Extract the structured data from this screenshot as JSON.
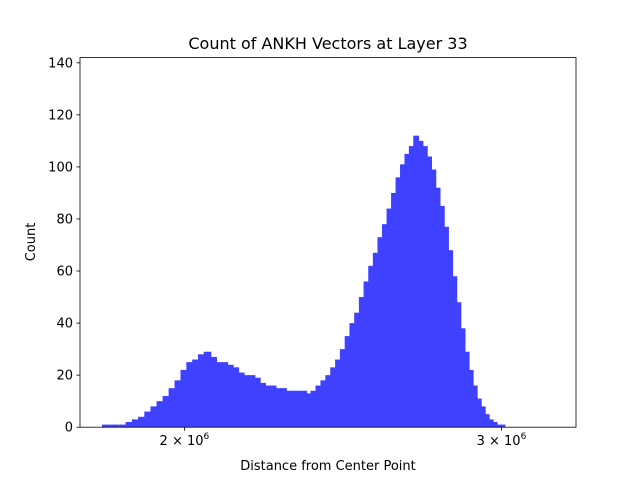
{
  "chart_data": {
    "type": "bar",
    "title": "Count of ANKH Vectors at Layer 33",
    "xlabel": "Distance from Center Point",
    "ylabel": "Count",
    "x_scale": "log",
    "xlim": [
      1750000,
      3300000
    ],
    "ylim": [
      0,
      142
    ],
    "grid": false,
    "legend": "none",
    "bar_color": "#4040ff",
    "y_ticks": [
      {
        "value": 0,
        "label": "0"
      },
      {
        "value": 20,
        "label": "20"
      },
      {
        "value": 40,
        "label": "40"
      },
      {
        "value": 60,
        "label": "60"
      },
      {
        "value": 80,
        "label": "80"
      },
      {
        "value": 100,
        "label": "100"
      },
      {
        "value": 120,
        "label": "120"
      },
      {
        "value": 140,
        "label": "140"
      }
    ],
    "x_ticks": [
      {
        "value": 2000000,
        "base": "2 × 10",
        "exp": "6"
      },
      {
        "value": 3000000,
        "base": "3 × 10",
        "exp": "6"
      }
    ],
    "bins": [
      {
        "x": 1810000,
        "y": 1
      },
      {
        "x": 1830000,
        "y": 1
      },
      {
        "x": 1850000,
        "y": 1
      },
      {
        "x": 1865000,
        "y": 2
      },
      {
        "x": 1880000,
        "y": 3
      },
      {
        "x": 1895000,
        "y": 4
      },
      {
        "x": 1910000,
        "y": 6
      },
      {
        "x": 1925000,
        "y": 8
      },
      {
        "x": 1940000,
        "y": 10
      },
      {
        "x": 1955000,
        "y": 12
      },
      {
        "x": 1970000,
        "y": 15
      },
      {
        "x": 1985000,
        "y": 18
      },
      {
        "x": 2000000,
        "y": 22
      },
      {
        "x": 2015000,
        "y": 25
      },
      {
        "x": 2030000,
        "y": 26
      },
      {
        "x": 2045000,
        "y": 28
      },
      {
        "x": 2060000,
        "y": 29
      },
      {
        "x": 2075000,
        "y": 27
      },
      {
        "x": 2090000,
        "y": 25
      },
      {
        "x": 2105000,
        "y": 25
      },
      {
        "x": 2120000,
        "y": 24
      },
      {
        "x": 2135000,
        "y": 23
      },
      {
        "x": 2150000,
        "y": 21
      },
      {
        "x": 2165000,
        "y": 20
      },
      {
        "x": 2180000,
        "y": 20
      },
      {
        "x": 2195000,
        "y": 19
      },
      {
        "x": 2210000,
        "y": 17
      },
      {
        "x": 2225000,
        "y": 16
      },
      {
        "x": 2240000,
        "y": 16
      },
      {
        "x": 2255000,
        "y": 15
      },
      {
        "x": 2270000,
        "y": 15
      },
      {
        "x": 2285000,
        "y": 14
      },
      {
        "x": 2300000,
        "y": 14
      },
      {
        "x": 2315000,
        "y": 14
      },
      {
        "x": 2330000,
        "y": 14
      },
      {
        "x": 2345000,
        "y": 13
      },
      {
        "x": 2360000,
        "y": 14
      },
      {
        "x": 2375000,
        "y": 16
      },
      {
        "x": 2390000,
        "y": 18
      },
      {
        "x": 2405000,
        "y": 20
      },
      {
        "x": 2420000,
        "y": 23
      },
      {
        "x": 2435000,
        "y": 26
      },
      {
        "x": 2450000,
        "y": 30
      },
      {
        "x": 2465000,
        "y": 35
      },
      {
        "x": 2480000,
        "y": 40
      },
      {
        "x": 2495000,
        "y": 44
      },
      {
        "x": 2510000,
        "y": 50
      },
      {
        "x": 2525000,
        "y": 56
      },
      {
        "x": 2540000,
        "y": 62
      },
      {
        "x": 2555000,
        "y": 67
      },
      {
        "x": 2570000,
        "y": 73
      },
      {
        "x": 2585000,
        "y": 78
      },
      {
        "x": 2600000,
        "y": 84
      },
      {
        "x": 2615000,
        "y": 90
      },
      {
        "x": 2630000,
        "y": 96
      },
      {
        "x": 2645000,
        "y": 101
      },
      {
        "x": 2660000,
        "y": 105
      },
      {
        "x": 2675000,
        "y": 108
      },
      {
        "x": 2690000,
        "y": 112
      },
      {
        "x": 2705000,
        "y": 110
      },
      {
        "x": 2720000,
        "y": 108
      },
      {
        "x": 2735000,
        "y": 104
      },
      {
        "x": 2750000,
        "y": 99
      },
      {
        "x": 2765000,
        "y": 92
      },
      {
        "x": 2780000,
        "y": 85
      },
      {
        "x": 2795000,
        "y": 77
      },
      {
        "x": 2810000,
        "y": 68
      },
      {
        "x": 2825000,
        "y": 58
      },
      {
        "x": 2840000,
        "y": 48
      },
      {
        "x": 2855000,
        "y": 38
      },
      {
        "x": 2870000,
        "y": 29
      },
      {
        "x": 2885000,
        "y": 22
      },
      {
        "x": 2900000,
        "y": 16
      },
      {
        "x": 2915000,
        "y": 11
      },
      {
        "x": 2930000,
        "y": 8
      },
      {
        "x": 2945000,
        "y": 5
      },
      {
        "x": 2960000,
        "y": 3
      },
      {
        "x": 2975000,
        "y": 2
      },
      {
        "x": 2990000,
        "y": 1
      },
      {
        "x": 3005000,
        "y": 1
      }
    ]
  }
}
